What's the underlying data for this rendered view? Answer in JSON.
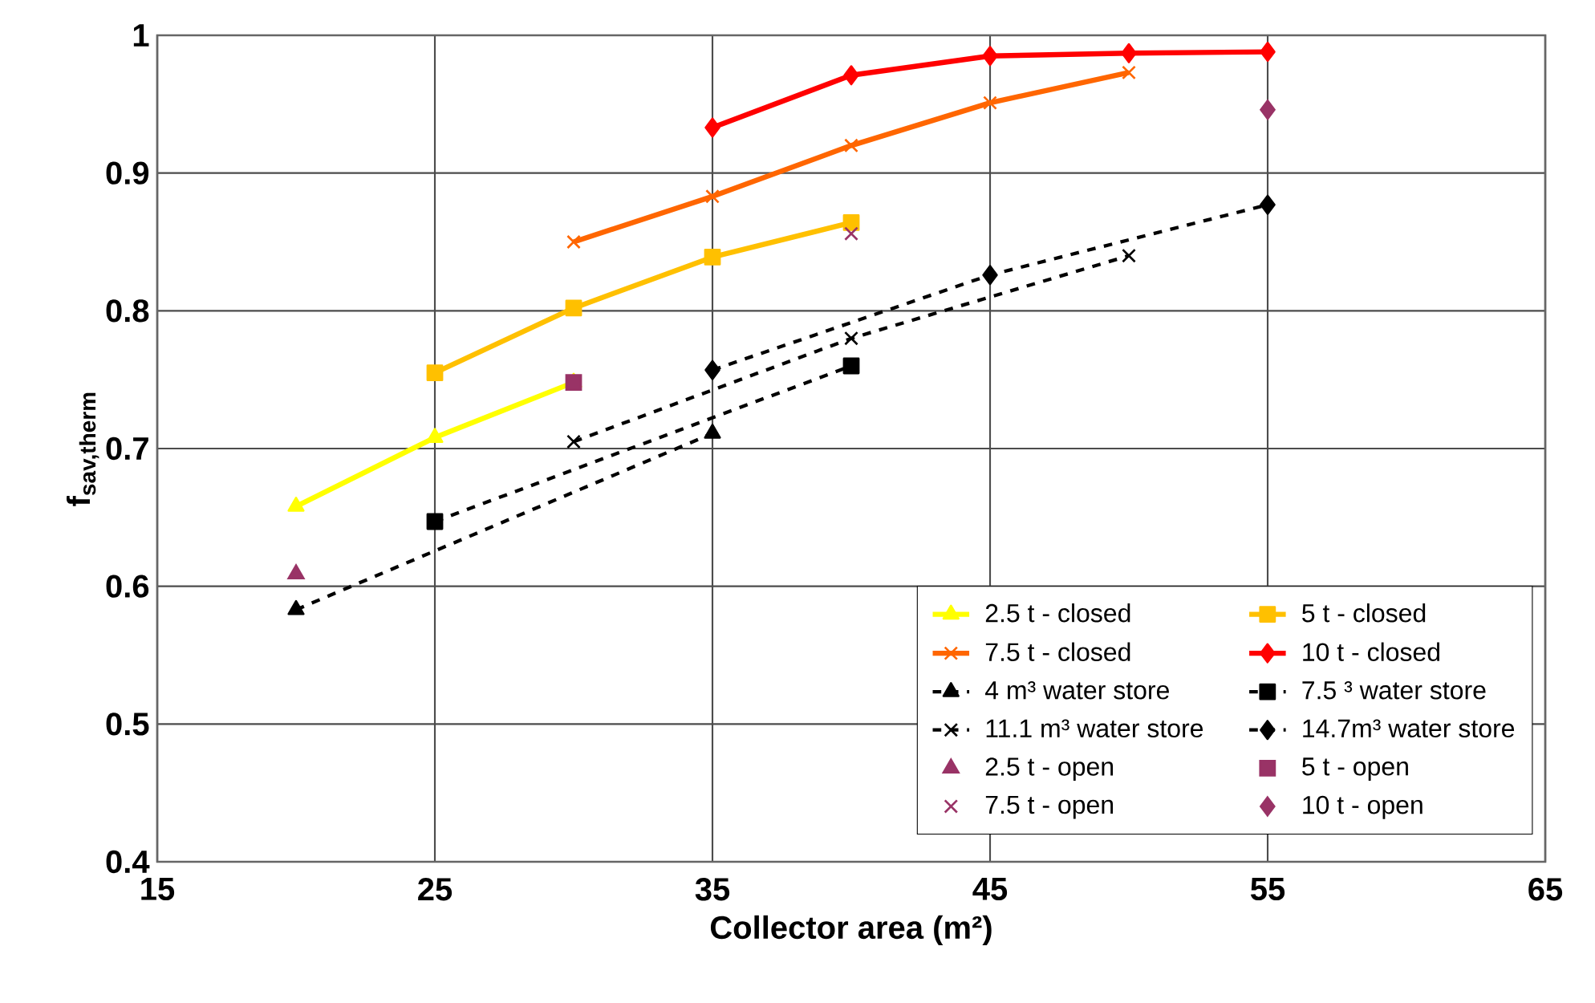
{
  "chart_data": {
    "type": "line",
    "xlabel": "Collector area (m²)",
    "ylabel": "f$_{sav,therm}$",
    "xlim": [
      15,
      65
    ],
    "xticks": [
      15,
      25,
      35,
      45,
      55,
      65
    ],
    "ylim": [
      0.4,
      1
    ],
    "yticks": [
      0.4,
      0.5,
      0.6,
      0.7,
      0.8,
      0.9,
      1
    ],
    "grid": true,
    "legend": "bottom right",
    "series": [
      {
        "name": "2.5 t - closed",
        "color": "#ffff00",
        "marker": "triangle",
        "line_style": "solid",
        "x": [
          20,
          25,
          30
        ],
        "values": [
          0.658,
          0.708,
          0.748
        ]
      },
      {
        "name": "5 t - closed",
        "color": "#ffc000",
        "marker": "square",
        "line_style": "solid",
        "x": [
          25,
          30,
          35,
          40
        ],
        "values": [
          0.755,
          0.802,
          0.839,
          0.864
        ]
      },
      {
        "name": "7.5 t - closed",
        "color": "#ff6600",
        "marker": "cross",
        "line_style": "solid",
        "x": [
          30,
          35,
          40,
          45,
          50
        ],
        "values": [
          0.85,
          0.883,
          0.92,
          0.951,
          0.973
        ]
      },
      {
        "name": "10 t - closed",
        "color": "#ff0000",
        "marker": "diamond",
        "line_style": "solid",
        "x": [
          35,
          40,
          45,
          50,
          55
        ],
        "values": [
          0.933,
          0.971,
          0.985,
          0.987,
          0.988
        ]
      },
      {
        "name": "4 m³ water store",
        "color": "#000000",
        "marker": "triangle",
        "line_style": "dashed",
        "x": [
          20,
          35
        ],
        "values": [
          0.583,
          0.711
        ]
      },
      {
        "name": "7.5 ³ water store",
        "color": "#000000",
        "marker": "square",
        "line_style": "dashed",
        "x": [
          25,
          40
        ],
        "values": [
          0.647,
          0.76
        ]
      },
      {
        "name": "11.1 m³ water store",
        "color": "#000000",
        "marker": "cross",
        "line_style": "dashed",
        "x": [
          30,
          40,
          50
        ],
        "values": [
          0.705,
          0.78,
          0.84
        ]
      },
      {
        "name": "14.7m³ water store",
        "color": "#000000",
        "marker": "diamond",
        "line_style": "dashed",
        "x": [
          35,
          45,
          55
        ],
        "values": [
          0.757,
          0.826,
          0.877
        ]
      },
      {
        "name": "2.5 t - open",
        "type": "scatter",
        "color": "#993366",
        "marker": "triangle",
        "x": [
          20
        ],
        "values": [
          0.609
        ]
      },
      {
        "name": "5 t - open",
        "type": "scatter",
        "color": "#993366",
        "marker": "square",
        "x": [
          30
        ],
        "values": [
          0.748
        ]
      },
      {
        "name": "7.5 t - open",
        "type": "scatter",
        "color": "#993366",
        "marker": "cross",
        "x": [
          40
        ],
        "values": [
          0.856
        ]
      },
      {
        "name": "10 t - open",
        "type": "scatter",
        "color": "#993366",
        "marker": "diamond",
        "x": [
          55
        ],
        "values": [
          0.946
        ]
      }
    ]
  }
}
